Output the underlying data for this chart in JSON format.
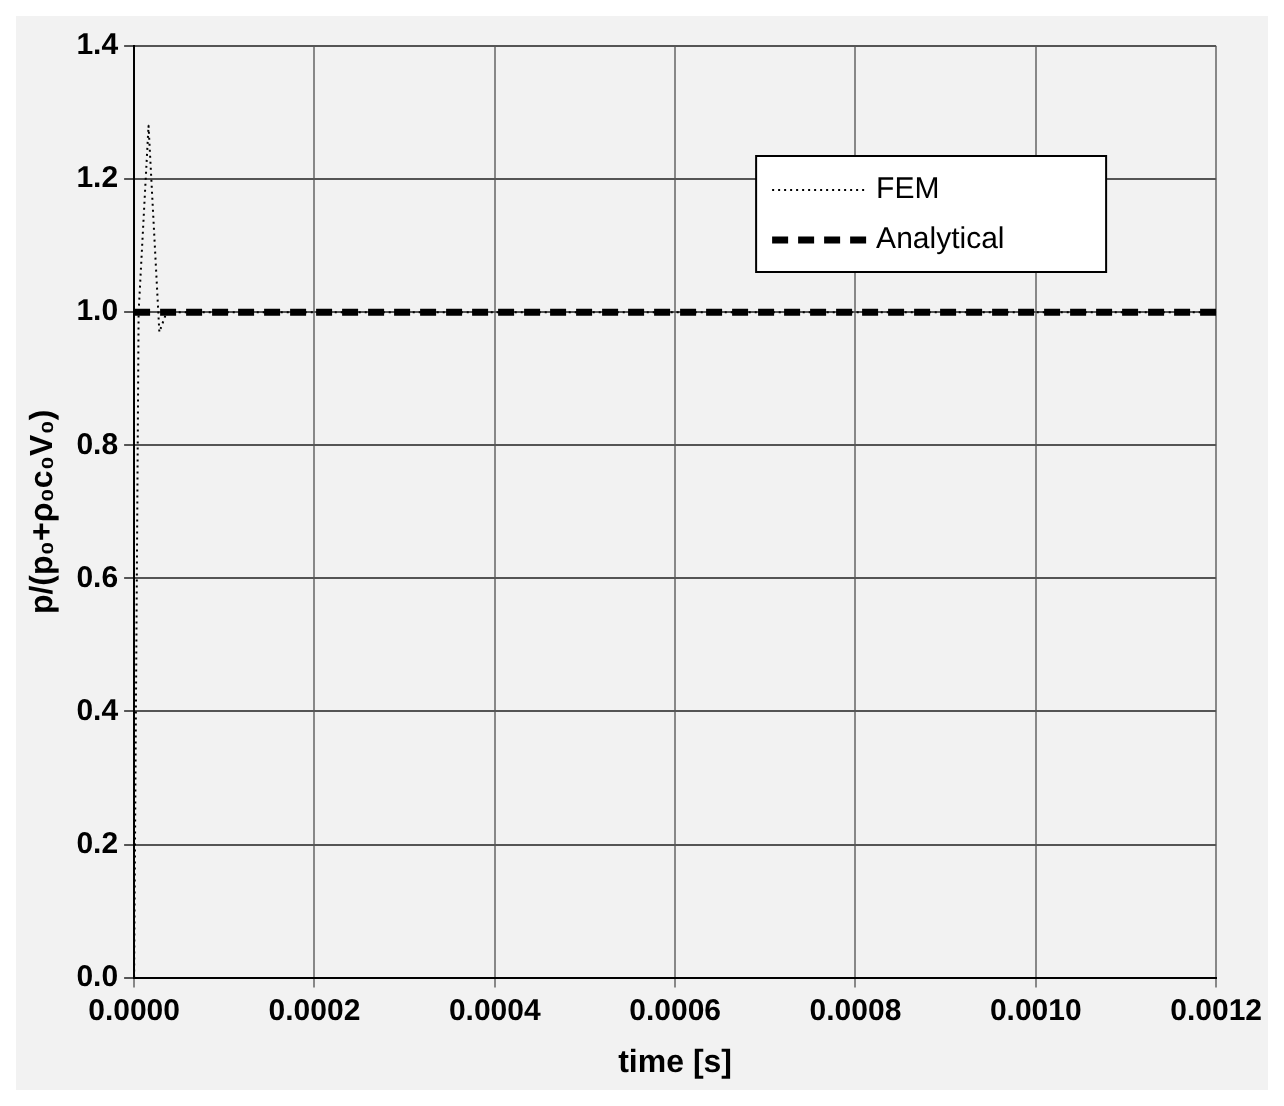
{
  "chart_data": {
    "type": "line",
    "xlabel": "time [s]",
    "ylabel": "p/(p₀+ρ₀c₀V₀)",
    "xlim": [
      0,
      0.0012
    ],
    "xticks": [
      {
        "value": 0,
        "label": "0.0000"
      },
      {
        "value": 0.0002,
        "label": "0.0002"
      },
      {
        "value": 0.0004,
        "label": "0.0004"
      },
      {
        "value": 0.0006,
        "label": "0.0006"
      },
      {
        "value": 0.0008,
        "label": "0.0008"
      },
      {
        "value": 0.001,
        "label": "0.0010"
      },
      {
        "value": 0.0012,
        "label": "0.0012"
      }
    ],
    "ylim": [
      0,
      1.4
    ],
    "yticks": [
      {
        "value": 0,
        "label": "0.0"
      },
      {
        "value": 0.2,
        "label": "0.2"
      },
      {
        "value": 0.4,
        "label": "0.4"
      },
      {
        "value": 0.6,
        "label": "0.6"
      },
      {
        "value": 0.8,
        "label": "0.8"
      },
      {
        "value": 1,
        "label": "1.0"
      },
      {
        "value": 1.2,
        "label": "1.2"
      },
      {
        "value": 1.4,
        "label": "1.4"
      }
    ],
    "grid": true,
    "legend": "top right",
    "marker": "none",
    "series": [
      {
        "name": "FEM",
        "color": "#000000",
        "line_style": "dotted",
        "x": [
          0,
          5e-06,
          1.6e-05,
          2.8e-05,
          3.6e-05,
          0.0012
        ],
        "values": [
          0,
          1.0,
          1.28,
          0.97,
          1.0,
          1.0
        ]
      },
      {
        "name": "Analytical",
        "color": "#000000",
        "line_style": "dashed",
        "x": [
          0,
          0.0012
        ],
        "values": [
          1.0,
          1.0
        ]
      }
    ]
  }
}
